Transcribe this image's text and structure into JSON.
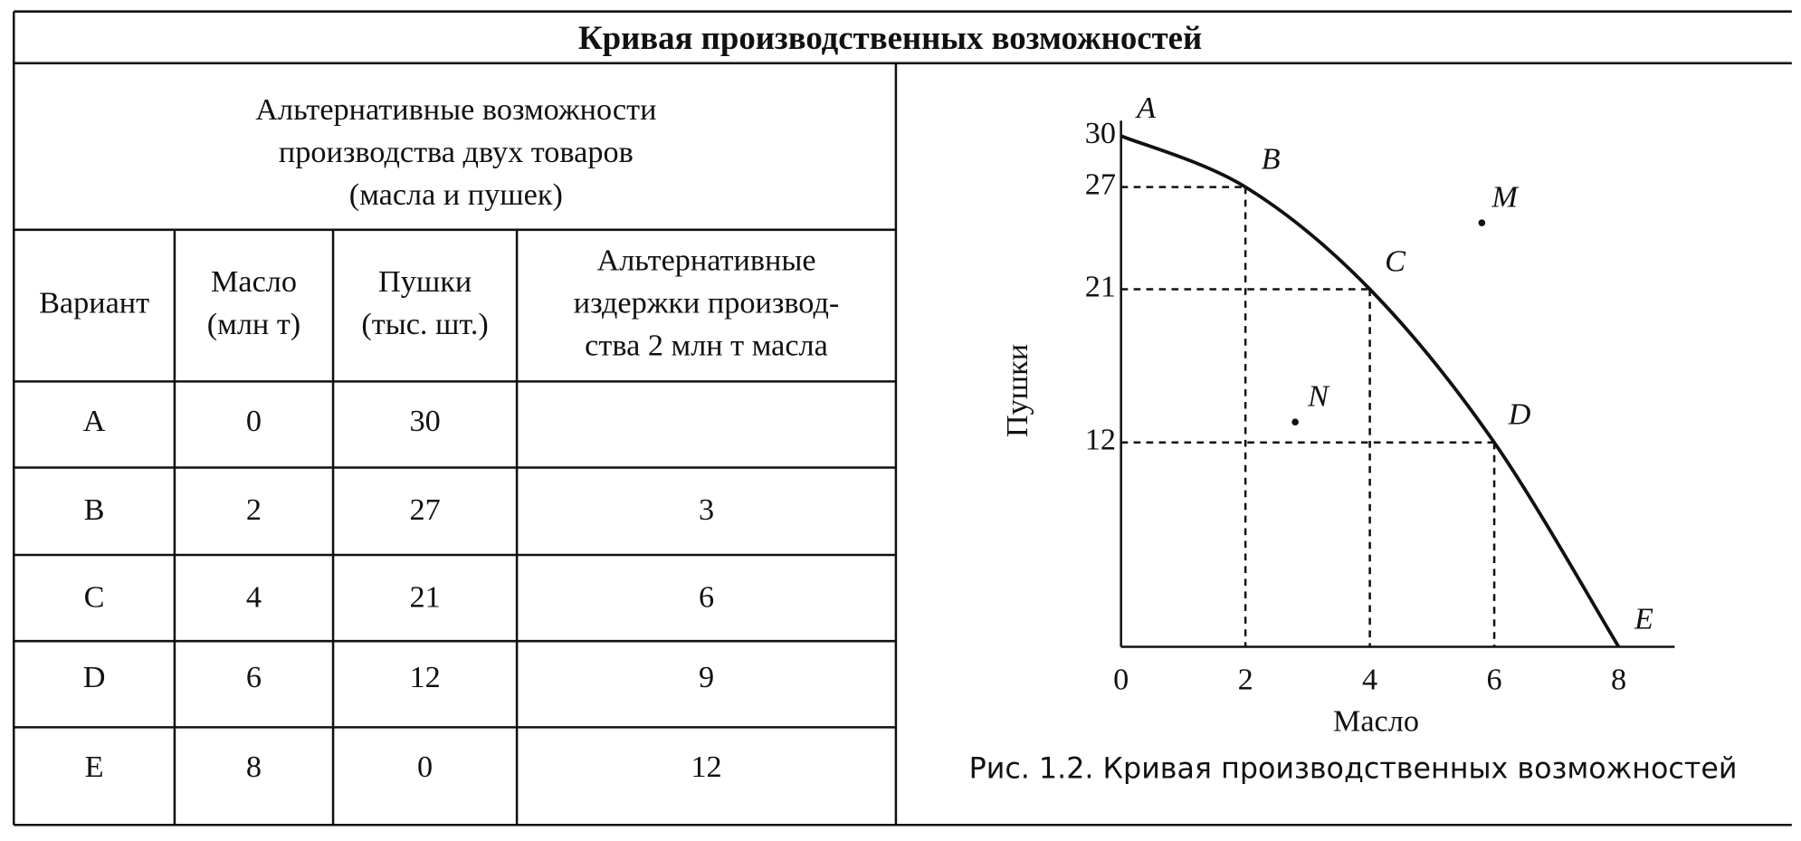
{
  "title": "Кривая производственных возможностей",
  "table": {
    "group_header": [
      "Альтернативные возможности",
      "производства двух товаров",
      "(масла и пушек)"
    ],
    "columns": [
      [
        "Вариант"
      ],
      [
        "Масло",
        "(млн т)"
      ],
      [
        "Пушки",
        "(тыс. шт.)"
      ],
      [
        "Альтернативные",
        "издержки производ-",
        "ства 2 млн т масла"
      ]
    ],
    "rows": [
      [
        "A",
        0,
        30
      ],
      [
        "B",
        2,
        27,
        3
      ],
      [
        "C",
        4,
        21,
        6
      ],
      [
        "D",
        6,
        12,
        9
      ],
      [
        "E",
        8,
        0,
        12
      ]
    ]
  },
  "chart_data": {
    "type": "line",
    "x_label": "Масло",
    "y_label": "Пушки",
    "caption": "Рис. 1.2. Кривая производственных возможностей",
    "x": [
      0,
      2,
      4,
      6,
      8
    ],
    "values": [
      30,
      27,
      21,
      12,
      0
    ],
    "point_labels": [
      "A",
      "B",
      "C",
      "D",
      "E"
    ],
    "extra_points": [
      {
        "label": "M",
        "x": 5.8,
        "y": 24.9
      },
      {
        "label": "N",
        "x": 2.8,
        "y": 13.2
      }
    ],
    "xlim": [
      0,
      8.9
    ],
    "ylim": [
      0,
      30.9
    ],
    "xticks": [
      0,
      2,
      4,
      6,
      8
    ],
    "yticks": [
      12,
      21,
      27,
      30
    ],
    "color": "#111111"
  }
}
